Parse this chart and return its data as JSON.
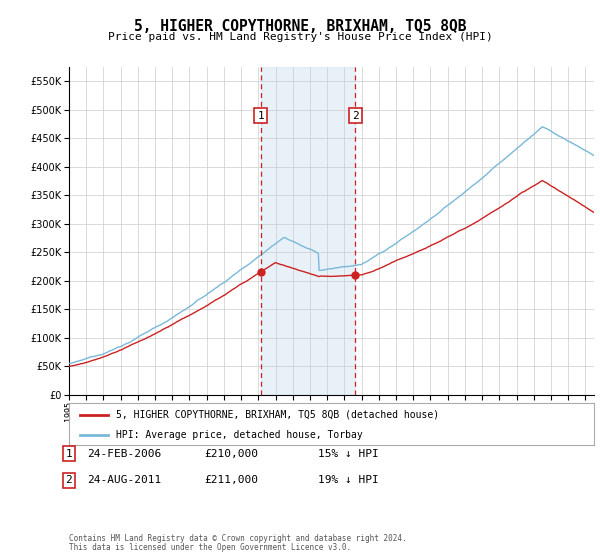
{
  "title": "5, HIGHER COPYTHORNE, BRIXHAM, TQ5 8QB",
  "subtitle": "Price paid vs. HM Land Registry's House Price Index (HPI)",
  "ylim": [
    0,
    575000
  ],
  "yticks": [
    0,
    50000,
    100000,
    150000,
    200000,
    250000,
    300000,
    350000,
    400000,
    450000,
    500000,
    550000
  ],
  "ytick_labels": [
    "£0",
    "£50K",
    "£100K",
    "£150K",
    "£200K",
    "£250K",
    "£300K",
    "£350K",
    "£400K",
    "£450K",
    "£500K",
    "£550K"
  ],
  "sale1_date": 2006.13,
  "sale1_price": 210000,
  "sale2_date": 2011.64,
  "sale2_price": 211000,
  "hpi_color": "#7ab8d9",
  "price_color": "#cc2222",
  "legend_line1": "5, HIGHER COPYTHORNE, BRIXHAM, TQ5 8QB (detached house)",
  "legend_line2": "HPI: Average price, detached house, Torbay",
  "footer_line1": "Contains HM Land Registry data © Crown copyright and database right 2024.",
  "footer_line2": "This data is licensed under the Open Government Licence v3.0.",
  "table_entries": [
    {
      "num": "1",
      "date": "24-FEB-2006",
      "price": "£210,000",
      "pct": "15% ↓ HPI"
    },
    {
      "num": "2",
      "date": "24-AUG-2011",
      "price": "£211,000",
      "pct": "19% ↓ HPI"
    }
  ],
  "xlim": [
    1995,
    2025.5
  ],
  "background_color": "#ffffff",
  "grid_color": "#cccccc",
  "shade_color": "#cce0f0"
}
